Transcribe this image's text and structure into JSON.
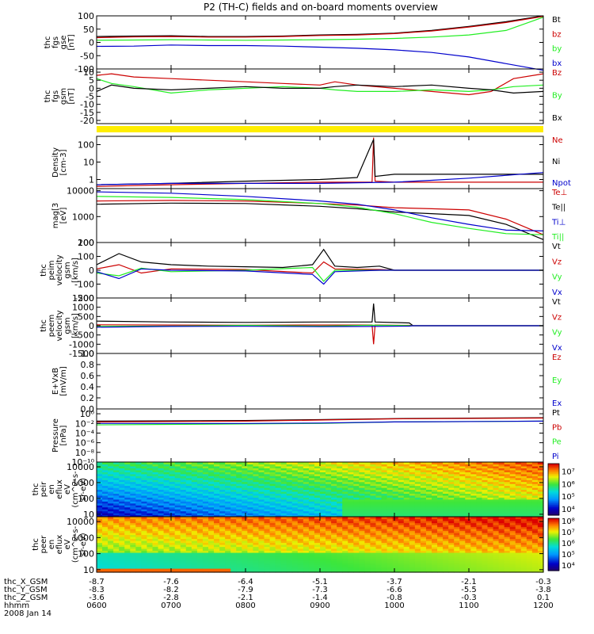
{
  "title": "P2 (TH-C) fields and on-board moments overview",
  "colors": {
    "black": "#000000",
    "red": "#cc0000",
    "green": "#22ee22",
    "blue": "#0000cc",
    "yellow": "#ffee00"
  },
  "chart_data": [
    {
      "type": "line",
      "name": "fgs_gse",
      "ylabel": [
        "thc",
        "fgs",
        "gse",
        "[nT]"
      ],
      "ylim": [
        -100,
        100
      ],
      "yticks": [
        "100",
        "50",
        "0",
        "-50",
        "-100"
      ],
      "yticks_values": [
        100,
        50,
        0,
        -50,
        -100
      ],
      "legend": [
        {
          "label": "Bt",
          "color": "#000000"
        },
        {
          "label": "bz",
          "color": "#cc0000"
        },
        {
          "label": "by",
          "color": "#22ee22"
        },
        {
          "label": "bx",
          "color": "#0000cc"
        }
      ],
      "series": [
        {
          "color": "#000000",
          "x": [
            6,
            6.5,
            7,
            7.5,
            8,
            8.5,
            9,
            9.5,
            10,
            10.5,
            11,
            11.5,
            12
          ],
          "y": [
            22,
            24,
            25,
            22,
            22,
            24,
            28,
            30,
            35,
            45,
            60,
            78,
            100
          ]
        },
        {
          "color": "#cc0000",
          "x": [
            6,
            6.5,
            7,
            7.5,
            8,
            8.5,
            9,
            9.5,
            10,
            10.5,
            11,
            11.5,
            12
          ],
          "y": [
            18,
            21,
            22,
            20,
            20,
            22,
            26,
            28,
            33,
            43,
            58,
            75,
            98
          ]
        },
        {
          "color": "#22ee22",
          "x": [
            6,
            6.5,
            7,
            7.5,
            8,
            8.5,
            9,
            9.5,
            10,
            10.5,
            11,
            11.5,
            12
          ],
          "y": [
            8,
            9,
            10,
            9,
            8,
            9,
            10,
            12,
            15,
            20,
            28,
            45,
            95
          ]
        },
        {
          "color": "#0000cc",
          "x": [
            6,
            6.5,
            7,
            7.5,
            8,
            8.5,
            9,
            9.5,
            10,
            10.5,
            11,
            11.5,
            12
          ],
          "y": [
            -15,
            -14,
            -10,
            -12,
            -12,
            -14,
            -18,
            -22,
            -28,
            -38,
            -55,
            -80,
            -105
          ]
        }
      ]
    },
    {
      "type": "line",
      "name": "fgs_gsm",
      "ylabel": [
        "thc",
        "fgs",
        "gsm",
        "[nT]"
      ],
      "ylim": [
        -22,
        12
      ],
      "yticks": [
        "10",
        "5",
        "0",
        "-5",
        "-10",
        "-15",
        "-20"
      ],
      "yticks_values": [
        10,
        5,
        0,
        -5,
        -10,
        -15,
        -20
      ],
      "legend": [
        {
          "label": "Bz",
          "color": "#cc0000"
        },
        {
          "label": "By",
          "color": "#22ee22"
        },
        {
          "label": "Bx",
          "color": "#000000"
        }
      ],
      "series": [
        {
          "color": "#cc0000",
          "x": [
            6,
            6.2,
            6.5,
            7,
            7.5,
            8,
            8.5,
            9,
            9.2,
            9.5,
            10,
            10.5,
            11,
            11.3,
            11.6,
            12
          ],
          "y": [
            8,
            9,
            7,
            6,
            5,
            4,
            3,
            2,
            4,
            2,
            0,
            -2,
            -4,
            -2,
            6,
            9
          ]
        },
        {
          "color": "#22ee22",
          "x": [
            6,
            6.2,
            6.5,
            7,
            7.5,
            8,
            8.5,
            9,
            9.2,
            9.5,
            10,
            10.5,
            11,
            11.3,
            11.6,
            12
          ],
          "y": [
            6,
            3,
            1,
            -3,
            -1,
            0,
            1,
            0,
            -1,
            -2,
            -2,
            -1,
            -2,
            -1,
            1,
            2
          ]
        },
        {
          "color": "#000000",
          "x": [
            6,
            6.2,
            6.5,
            7,
            7.5,
            8,
            8.5,
            9,
            9.2,
            9.5,
            10,
            10.5,
            11,
            11.3,
            11.6,
            12
          ],
          "y": [
            -2,
            2,
            0,
            -1,
            0,
            1,
            0,
            0,
            1,
            2,
            1,
            2,
            0,
            -1,
            -3,
            -2
          ]
        }
      ]
    },
    {
      "type": "line",
      "name": "density",
      "yscale": "log",
      "ylabel": [
        "Density",
        "[cm-3]"
      ],
      "ylim": [
        0.3,
        300
      ],
      "yticks": [
        "100",
        "10",
        "1"
      ],
      "yticks_values": [
        100,
        10,
        1
      ],
      "legend": [
        {
          "label": "Ne",
          "color": "#cc0000"
        },
        {
          "label": "Ni",
          "color": "#000000"
        },
        {
          "label": "Npot",
          "color": "#0000cc"
        }
      ],
      "series": [
        {
          "color": "#cc0000",
          "x": [
            6,
            7,
            8,
            9,
            9.7,
            9.72,
            9.74,
            10,
            11,
            12
          ],
          "y": [
            0.4,
            0.5,
            0.6,
            0.7,
            0.7,
            250,
            0.8,
            0.7,
            0.7,
            0.7
          ]
        },
        {
          "color": "#000000",
          "x": [
            6,
            7,
            8,
            9,
            9.5,
            9.72,
            9.74,
            10,
            11,
            12
          ],
          "y": [
            0.5,
            0.6,
            0.8,
            1,
            1.3,
            200,
            1.5,
            2,
            2,
            2
          ]
        },
        {
          "color": "#0000cc",
          "x": [
            6,
            7,
            8,
            9,
            10,
            10.5,
            11,
            12
          ],
          "y": [
            0.5,
            0.6,
            0.6,
            0.6,
            0.7,
            0.9,
            1.2,
            2.5
          ]
        }
      ]
    },
    {
      "type": "line",
      "name": "temperature",
      "yscale": "log",
      "ylabel": [
        "mag[3",
        "[eV]"
      ],
      "ylim": [
        100,
        12000
      ],
      "yticks": [
        "10000",
        "1000",
        "100"
      ],
      "yticks_values": [
        10000,
        1000,
        100
      ],
      "legend": [
        {
          "label": "Te⊥",
          "color": "#cc0000"
        },
        {
          "label": "Te||",
          "color": "#000000"
        },
        {
          "label": "Ti⊥",
          "color": "#0000cc"
        },
        {
          "label": "Ti||",
          "color": "#22ee22"
        }
      ],
      "series": [
        {
          "color": "#cc0000",
          "x": [
            6,
            7,
            8,
            9,
            9.5,
            10,
            10.5,
            11,
            11.5,
            12
          ],
          "y": [
            4000,
            4200,
            4000,
            3200,
            2800,
            2200,
            2000,
            1800,
            800,
            200
          ]
        },
        {
          "color": "#000000",
          "x": [
            6,
            7,
            8,
            9,
            9.5,
            10,
            10.5,
            11,
            11.5,
            12
          ],
          "y": [
            3000,
            3300,
            3200,
            2500,
            2000,
            1500,
            1300,
            1100,
            500,
            130
          ]
        },
        {
          "color": "#0000cc",
          "x": [
            6,
            7,
            8,
            9,
            9.5,
            10,
            10.5,
            11,
            11.5,
            12
          ],
          "y": [
            9000,
            8000,
            6000,
            4000,
            3000,
            1800,
            900,
            500,
            300,
            280
          ]
        },
        {
          "color": "#22ee22",
          "x": [
            6,
            7,
            8,
            9,
            9.5,
            10,
            10.5,
            11,
            11.5,
            12
          ],
          "y": [
            6000,
            5500,
            4500,
            3200,
            2300,
            1300,
            600,
            350,
            220,
            200
          ]
        }
      ]
    },
    {
      "type": "line",
      "name": "peim_velocity",
      "ylabel": [
        "thc",
        "peim",
        "velocity",
        "gsm",
        "[km/s]"
      ],
      "ylim": [
        -200,
        200
      ],
      "yticks": [
        "200",
        "100",
        "0",
        "-100",
        "-200"
      ],
      "yticks_values": [
        200,
        100,
        0,
        -100,
        -200
      ],
      "legend": [
        {
          "label": "Vt",
          "color": "#000000"
        },
        {
          "label": "Vz",
          "color": "#cc0000"
        },
        {
          "label": "Vy",
          "color": "#22ee22"
        },
        {
          "label": "Vx",
          "color": "#0000cc"
        }
      ],
      "series": [
        {
          "color": "#000000",
          "x": [
            6,
            6.3,
            6.6,
            7,
            7.5,
            8,
            8.5,
            8.9,
            9.05,
            9.2,
            9.5,
            9.8,
            10,
            12
          ],
          "y": [
            40,
            120,
            60,
            40,
            30,
            25,
            20,
            40,
            150,
            30,
            20,
            30,
            0,
            0
          ]
        },
        {
          "color": "#cc0000",
          "x": [
            6,
            6.3,
            6.6,
            7,
            8,
            8.9,
            9.05,
            9.2,
            9.8,
            10,
            12
          ],
          "y": [
            10,
            40,
            -20,
            10,
            5,
            -20,
            60,
            10,
            5,
            0,
            0
          ]
        },
        {
          "color": "#22ee22",
          "x": [
            6,
            6.3,
            6.6,
            7,
            8,
            8.9,
            9.05,
            9.2,
            9.8,
            10,
            12
          ],
          "y": [
            -20,
            -40,
            15,
            -10,
            0,
            20,
            -80,
            0,
            0,
            0,
            0
          ]
        },
        {
          "color": "#0000cc",
          "x": [
            6,
            6.3,
            6.6,
            7,
            8,
            8.9,
            9.05,
            9.2,
            9.8,
            10,
            12
          ],
          "y": [
            -10,
            -60,
            10,
            0,
            -5,
            -30,
            -100,
            -10,
            0,
            0,
            0
          ]
        }
      ]
    },
    {
      "type": "line",
      "name": "peem_velocity",
      "ylabel": [
        "thc",
        "peem",
        "velocity",
        "gsm",
        "[km/s]"
      ],
      "ylim": [
        -1500,
        1500
      ],
      "yticks": [
        "1500",
        "1000",
        "500",
        "0",
        "-500",
        "-1000",
        "-1500"
      ],
      "yticks_values": [
        1500,
        1000,
        500,
        0,
        -500,
        -1000,
        -1500
      ],
      "legend": [
        {
          "label": "Vt",
          "color": "#000000"
        },
        {
          "label": "Vz",
          "color": "#cc0000"
        },
        {
          "label": "Vy",
          "color": "#22ee22"
        },
        {
          "label": "Vx",
          "color": "#0000cc"
        }
      ],
      "series": [
        {
          "color": "#000000",
          "x": [
            6,
            7,
            8,
            9,
            9.7,
            9.72,
            9.74,
            10.2,
            10.25,
            12
          ],
          "y": [
            250,
            200,
            180,
            200,
            200,
            1200,
            200,
            150,
            0,
            0
          ]
        },
        {
          "color": "#cc0000",
          "x": [
            6,
            7,
            8,
            9,
            9.7,
            9.72,
            9.74,
            10.2,
            10.25,
            12
          ],
          "y": [
            50,
            40,
            30,
            40,
            40,
            -1000,
            40,
            20,
            0,
            0
          ]
        },
        {
          "color": "#22ee22",
          "x": [
            6,
            7,
            8,
            9,
            9.7,
            10.2,
            10.25,
            12
          ],
          "y": [
            -30,
            -20,
            20,
            -20,
            30,
            10,
            0,
            0
          ]
        },
        {
          "color": "#0000cc",
          "x": [
            6,
            7,
            8,
            9,
            9.7,
            10.2,
            10.25,
            12
          ],
          "y": [
            -80,
            -40,
            -30,
            -50,
            -40,
            -20,
            0,
            0
          ]
        }
      ]
    },
    {
      "type": "line",
      "name": "efield",
      "ylabel": [
        "E+VxB",
        "[mV/m]"
      ],
      "ylim": [
        0,
        1
      ],
      "yticks": [
        "1.0",
        "0.8",
        "0.6",
        "0.4",
        "0.2",
        "0.0"
      ],
      "yticks_values": [
        1,
        0.8,
        0.6,
        0.4,
        0.2,
        0
      ],
      "legend": [
        {
          "label": "Ez",
          "color": "#cc0000"
        },
        {
          "label": "Ey",
          "color": "#22ee22"
        },
        {
          "label": "Ex",
          "color": "#0000cc"
        }
      ],
      "series": []
    },
    {
      "type": "line",
      "name": "pressure",
      "yscale": "log",
      "ylabel": [
        "Pressure",
        "[nPa]"
      ],
      "ylim": [
        1e-10,
        10
      ],
      "yticks": [
        "10⁰",
        "10⁻²",
        "10⁻⁴",
        "10⁻⁶",
        "10⁻⁸",
        "10⁻¹⁰"
      ],
      "yticks_values": [
        1,
        0.01,
        0.0001,
        1e-06,
        1e-08,
        1e-10
      ],
      "legend": [
        {
          "label": "Pt",
          "color": "#000000"
        },
        {
          "label": "Pb",
          "color": "#cc0000"
        },
        {
          "label": "Pe",
          "color": "#22ee22"
        },
        {
          "label": "Pi",
          "color": "#0000cc"
        }
      ],
      "series": [
        {
          "color": "#000000",
          "x": [
            6,
            8,
            9,
            10,
            12
          ],
          "y": [
            0.03,
            0.04,
            0.06,
            0.1,
            0.15
          ]
        },
        {
          "color": "#cc0000",
          "x": [
            6,
            8,
            9,
            10,
            12
          ],
          "y": [
            0.02,
            0.03,
            0.05,
            0.09,
            0.13
          ]
        },
        {
          "color": "#22ee22",
          "x": [
            6,
            8,
            9,
            10,
            12
          ],
          "y": [
            0.005,
            0.008,
            0.01,
            0.02,
            0.03
          ]
        },
        {
          "color": "#0000cc",
          "x": [
            6,
            8,
            9,
            10,
            12
          ],
          "y": [
            0.01,
            0.01,
            0.012,
            0.02,
            0.03
          ]
        }
      ]
    },
    {
      "type": "heatmap",
      "name": "peir_spectrogram",
      "ylabel": [
        "thc",
        "peir",
        "en",
        "eflux",
        "eV",
        "(cm^2-s-",
        "sr-eV)"
      ],
      "ylim": [
        7,
        20000
      ],
      "yscale": "log",
      "yticks": [
        "10000",
        "1000",
        "100",
        "10"
      ],
      "yticks_values": [
        10000,
        1000,
        100,
        10
      ],
      "colorbar": {
        "ticks": [
          "10⁷",
          "10⁶",
          "10⁵",
          "10⁴"
        ],
        "range_log": [
          3.5,
          7.6
        ]
      }
    },
    {
      "type": "heatmap",
      "name": "peer_spectrogram",
      "ylabel": [
        "thc",
        "peer",
        "en",
        "eflux",
        "eV",
        "(cm^2-s-",
        "sr-eV)"
      ],
      "ylim": [
        7,
        20000
      ],
      "yscale": "log",
      "yticks": [
        "10000",
        "1000",
        "100",
        "10"
      ],
      "yticks_values": [
        10000,
        1000,
        100,
        10
      ],
      "colorbar": {
        "ticks": [
          "10⁸",
          "10⁷",
          "10⁶",
          "10⁵",
          "10⁴"
        ],
        "range_log": [
          3.5,
          8.2
        ]
      }
    }
  ],
  "axis": {
    "rows": [
      {
        "label": "thc_X_GSM",
        "values": [
          "-8.7",
          "-7.6",
          "-6.4",
          "-5.1",
          "-3.7",
          "-2.1",
          "-0.3"
        ]
      },
      {
        "label": "thc_Y_GSM",
        "values": [
          "-8.3",
          "-8.2",
          "-7.9",
          "-7.3",
          "-6.6",
          "-5.5",
          "-3.8"
        ]
      },
      {
        "label": "thc_Z_GSM",
        "values": [
          "-3.6",
          "-2.8",
          "-2.1",
          "-1.4",
          "-0.8",
          "-0.3",
          "0.1"
        ]
      },
      {
        "label": "hhmm",
        "values": [
          "0600",
          "0700",
          "0800",
          "0900",
          "1000",
          "1100",
          "1200"
        ]
      }
    ],
    "date": "2008 Jan 14",
    "x_values": [
      6,
      7,
      8,
      9,
      10,
      11,
      12
    ]
  }
}
